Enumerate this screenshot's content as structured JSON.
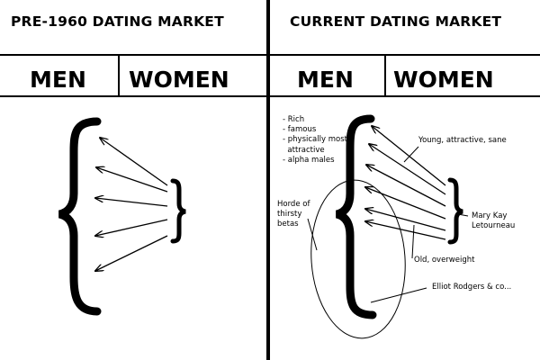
{
  "left_panel": {
    "title": "PRE-1960 DATING MARKET",
    "men_label": "MEN",
    "women_label": "WOMEN"
  },
  "right_panel": {
    "title": "CURRENT DATING MARKET",
    "men_label": "MEN",
    "women_label": "WOMEN",
    "top_men_traits": [
      "- Rich",
      "- famous",
      "- physically most",
      "  attractive",
      "- alpha males"
    ],
    "horde_label": [
      "Horde of",
      "thirsty",
      "betas"
    ],
    "young_label": "Young, attractive, sane",
    "mary_label": [
      "Mary Kay",
      "Letourneau"
    ],
    "old_label": "Old, overweight",
    "elliot_label": "Elliot Rodgers & co..."
  }
}
